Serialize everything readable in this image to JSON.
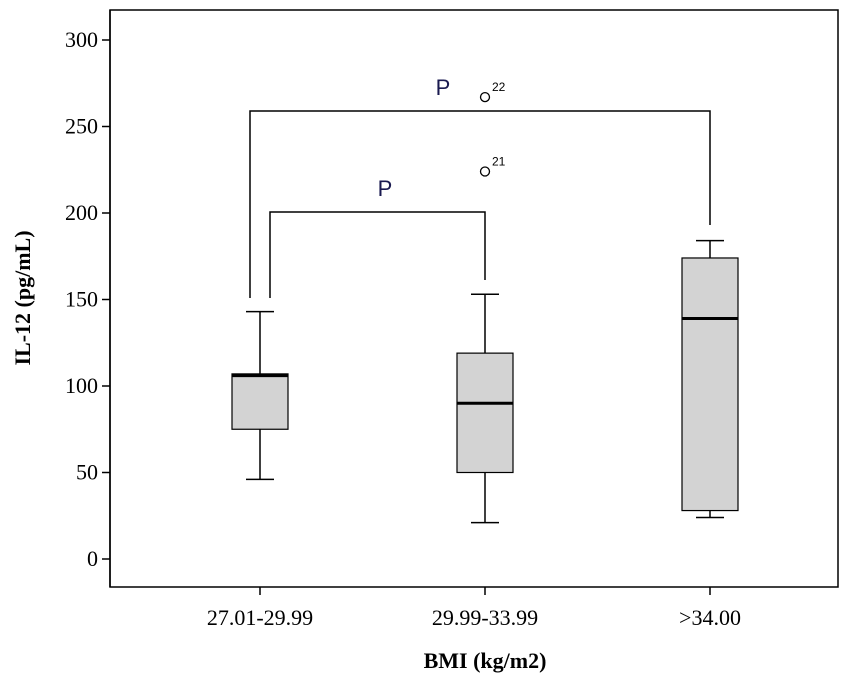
{
  "chart_data": {
    "type": "box",
    "xlabel": "BMI (kg/m2)",
    "ylabel": "IL-12 (pg/mL)",
    "ylim": [
      0,
      300
    ],
    "yticks": [
      0,
      50,
      100,
      150,
      200,
      250,
      300
    ],
    "categories": [
      "27.01-29.99",
      "29.99-33.99",
      ">34.00"
    ],
    "boxes": [
      {
        "category": "27.01-29.99",
        "whisker_low": 46,
        "q1": 75,
        "median": 106,
        "q3": 107,
        "whisker_high": 143
      },
      {
        "category": "29.99-33.99",
        "whisker_low": 21,
        "q1": 50,
        "median": 90,
        "q3": 119,
        "whisker_high": 153
      },
      {
        "category": ">34.00",
        "whisker_low": 24,
        "q1": 28,
        "median": 139,
        "q3": 174,
        "whisker_high": 184
      }
    ],
    "outliers": [
      {
        "category": "29.99-33.99",
        "y": 267,
        "label": "22"
      },
      {
        "category": "29.99-33.99",
        "y": 224,
        "label": "21"
      }
    ],
    "brackets": [
      {
        "from": "27.01-29.99",
        "to": ">34.00",
        "label": "P"
      },
      {
        "from": "27.01-29.99",
        "to": "29.99-33.99",
        "label": "P"
      }
    ],
    "grid": false,
    "box_color": "#d3d3d3"
  }
}
